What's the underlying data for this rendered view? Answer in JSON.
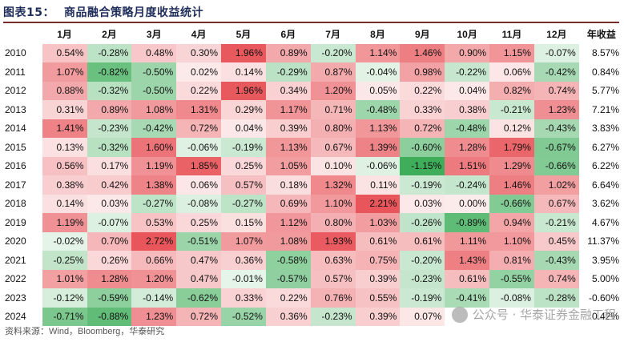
{
  "title": {
    "label": "图表15：",
    "text": "商品融合策略月度收益统计"
  },
  "header": [
    "",
    "1月",
    "2月",
    "3月",
    "4月",
    "5月",
    "6月",
    "7月",
    "8月",
    "9月",
    "10月",
    "11月",
    "12月",
    "年收益"
  ],
  "rows": [
    {
      "year": "2010",
      "values": [
        "0.54%",
        "-0.28%",
        "0.48%",
        "0.30%",
        "1.96%",
        "0.89%",
        "-0.20%",
        "1.14%",
        "1.46%",
        "0.90%",
        "1.15%",
        "-0.07%"
      ],
      "annual": "8.57%"
    },
    {
      "year": "2011",
      "values": [
        "1.07%",
        "-0.82%",
        "-0.50%",
        "0.02%",
        "0.14%",
        "-0.29%",
        "0.87%",
        "-0.04%",
        "0.98%",
        "-0.22%",
        "0.06%",
        "-0.42%"
      ],
      "annual": "0.84%"
    },
    {
      "year": "2012",
      "values": [
        "0.88%",
        "-0.32%",
        "-0.50%",
        "0.22%",
        "1.96%",
        "0.34%",
        "1.20%",
        "0.05%",
        "0.22%",
        "0.04%",
        "0.82%",
        "0.74%"
      ],
      "annual": "5.77%"
    },
    {
      "year": "2013",
      "values": [
        "0.31%",
        "0.89%",
        "1.08%",
        "1.31%",
        "0.29%",
        "1.17%",
        "0.71%",
        "-0.48%",
        "0.33%",
        "0.38%",
        "-0.21%",
        "1.23%"
      ],
      "annual": "7.21%"
    },
    {
      "year": "2014",
      "values": [
        "1.41%",
        "-0.23%",
        "-0.42%",
        "0.72%",
        "0.04%",
        "0.39%",
        "0.80%",
        "1.13%",
        "0.72%",
        "-0.48%",
        "0.12%",
        "-0.43%"
      ],
      "annual": "3.83%"
    },
    {
      "year": "2015",
      "values": [
        "0.13%",
        "-0.32%",
        "1.60%",
        "-0.06%",
        "-0.19%",
        "1.13%",
        "0.67%",
        "1.39%",
        "-0.60%",
        "1.28%",
        "1.79%",
        "-0.67%"
      ],
      "annual": "6.27%"
    },
    {
      "year": "2016",
      "values": [
        "0.56%",
        "0.17%",
        "1.19%",
        "1.85%",
        "0.25%",
        "1.05%",
        "0.10%",
        "-0.06%",
        "-1.15%",
        "1.51%",
        "1.29%",
        "-0.66%"
      ],
      "annual": "6.22%"
    },
    {
      "year": "2017",
      "values": [
        "0.38%",
        "0.42%",
        "1.38%",
        "0.06%",
        "0.57%",
        "0.18%",
        "1.32%",
        "0.11%",
        "-0.19%",
        "-0.24%",
        "1.46%",
        "1.02%"
      ],
      "annual": "6.64%"
    },
    {
      "year": "2018",
      "values": [
        "0.14%",
        "0.03%",
        "-0.27%",
        "-0.08%",
        "-0.27%",
        "0.69%",
        "1.10%",
        "2.21%",
        "0.03%",
        "0.00%",
        "-0.66%",
        "0.67%"
      ],
      "annual": "3.62%"
    },
    {
      "year": "2019",
      "values": [
        "1.19%",
        "-0.07%",
        "0.53%",
        "0.25%",
        "0.15%",
        "1.12%",
        "0.80%",
        "1.03%",
        "-0.26%",
        "-0.89%",
        "0.94%",
        "-0.21%"
      ],
      "annual": "4.67%"
    },
    {
      "year": "2020",
      "values": [
        "-0.02%",
        "0.70%",
        "2.72%",
        "-0.51%",
        "1.07%",
        "1.08%",
        "1.93%",
        "0.61%",
        "0.61%",
        "1.11%",
        "1.10%",
        "0.45%"
      ],
      "annual": "11.37%"
    },
    {
      "year": "2021",
      "values": [
        "-0.25%",
        "0.26%",
        "0.66%",
        "0.47%",
        "0.36%",
        "-0.58%",
        "0.63%",
        "0.75%",
        "-0.20%",
        "1.43%",
        "0.81%",
        "-0.43%"
      ],
      "annual": "3.95%"
    },
    {
      "year": "2022",
      "values": [
        "1.01%",
        "1.28%",
        "1.20%",
        "0.47%",
        "-0.01%",
        "-0.57%",
        "0.57%",
        "0.39%",
        "-0.23%",
        "0.61%",
        "-0.55%",
        "0.74%"
      ],
      "annual": "5.00%"
    },
    {
      "year": "2023",
      "values": [
        "-0.12%",
        "-0.59%",
        "-0.14%",
        "-0.62%",
        "0.33%",
        "0.22%",
        "0.76%",
        "0.55%",
        "-0.19%",
        "-0.41%",
        "-0.08%",
        "-0.28%"
      ],
      "annual": "-0.60%"
    },
    {
      "year": "2024",
      "values": [
        "-0.71%",
        "-0.88%",
        "1.23%",
        "0.72%",
        "-0.52%",
        "0.36%",
        "-0.23%",
        "0.39%",
        "0.07%",
        "",
        "",
        ""
      ],
      "annual": "0.42%"
    }
  ],
  "footer": "资料来源：Wind，Bloomberg，华泰研究",
  "watermark": "公众号 · 华泰证券金融工程",
  "colors": {
    "positive": "#e8565b",
    "negative": "#3fae5a",
    "neutral": "#ffffff",
    "title": "#1f2d5a",
    "rule": "#7a2b2b"
  }
}
